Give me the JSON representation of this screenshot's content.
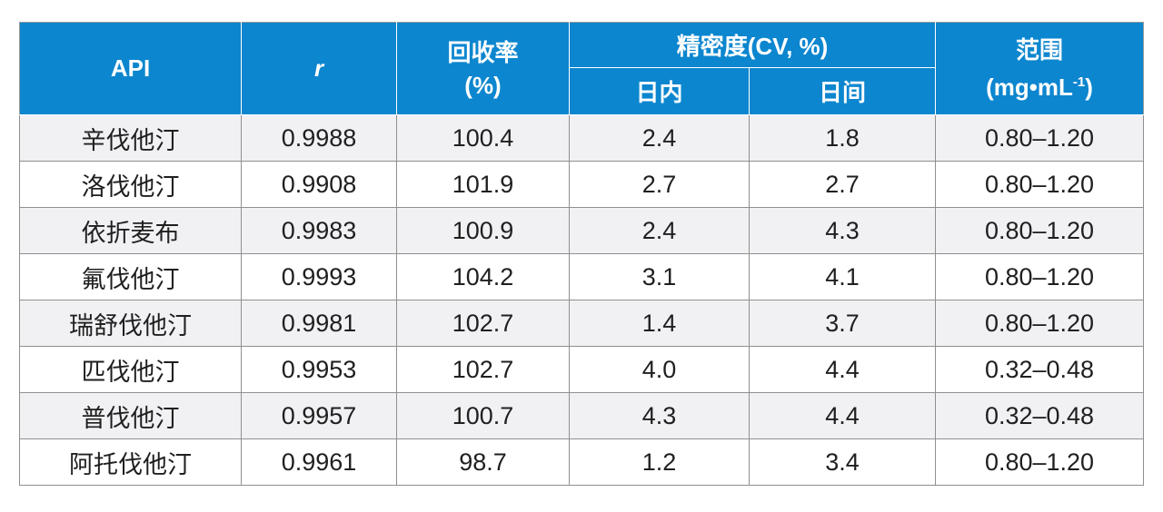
{
  "header": {
    "api": "API",
    "r": "r",
    "recovery_line1": "回收率",
    "recovery_line2": "(%)",
    "precision": "精密度(CV, %)",
    "intraday": "日内",
    "interday": "日间",
    "range_line1": "范围",
    "range_line2_main": "(mg•mL",
    "range_line2_sup": "-1",
    "range_line2_end": ")"
  },
  "rows": [
    {
      "api": "辛伐他汀",
      "r": "0.9988",
      "recovery": "100.4",
      "intraday": "2.4",
      "interday": "1.8",
      "range": "0.80–1.20"
    },
    {
      "api": "洛伐他汀",
      "r": "0.9908",
      "recovery": "101.9",
      "intraday": "2.7",
      "interday": "2.7",
      "range": "0.80–1.20"
    },
    {
      "api": "依折麦布",
      "r": "0.9983",
      "recovery": "100.9",
      "intraday": "2.4",
      "interday": "4.3",
      "range": "0.80–1.20"
    },
    {
      "api": "氟伐他汀",
      "r": "0.9993",
      "recovery": "104.2",
      "intraday": "3.1",
      "interday": "4.1",
      "range": "0.80–1.20"
    },
    {
      "api": "瑞舒伐他汀",
      "r": "0.9981",
      "recovery": "102.7",
      "intraday": "1.4",
      "interday": "3.7",
      "range": "0.80–1.20"
    },
    {
      "api": "匹伐他汀",
      "r": "0.9953",
      "recovery": "102.7",
      "intraday": "4.0",
      "interday": "4.4",
      "range": "0.32–0.48"
    },
    {
      "api": "普伐他汀",
      "r": "0.9957",
      "recovery": "100.7",
      "intraday": "4.3",
      "interday": "4.4",
      "range": "0.32–0.48"
    },
    {
      "api": "阿托伐他汀",
      "r": "0.9961",
      "recovery": "98.7",
      "intraday": "1.2",
      "interday": "3.4",
      "range": "0.80–1.20"
    }
  ],
  "colors": {
    "header_bg": "#0c86cf",
    "header_text": "#ffffff",
    "row_odd_bg": "#f1f1f4",
    "row_even_bg": "#ffffff",
    "border": "#8f8f8f"
  }
}
